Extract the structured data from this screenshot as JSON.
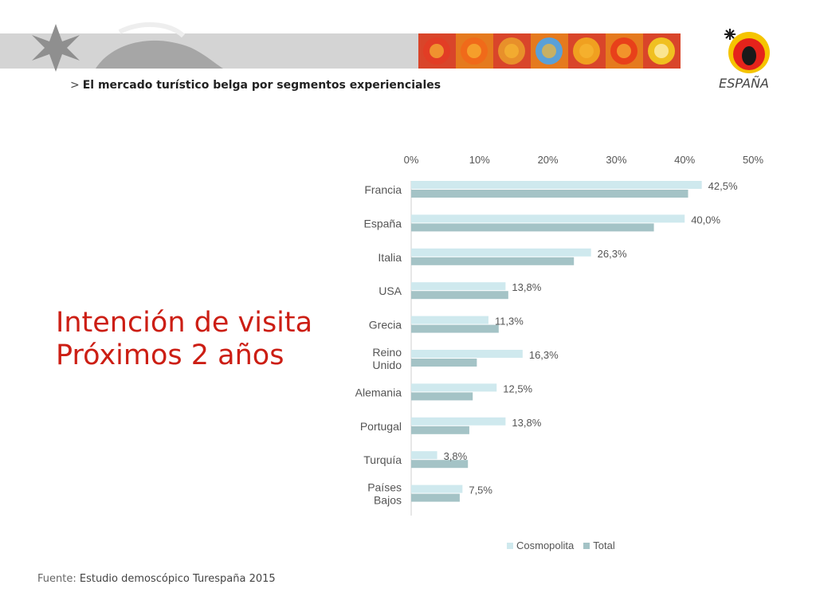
{
  "header": {
    "breadcrumb_arrow": ">",
    "breadcrumb_text": "El mercado turístico belga por segmentos experienciales",
    "logo_text": "ESPAÑA",
    "tile_colors": [
      "#e23d25",
      "#f06a1a",
      "#e8902a",
      "#5aa0d8",
      "#f0a020",
      "#e8401a",
      "#f0c020"
    ]
  },
  "slide": {
    "title_line1": "Intención de visita",
    "title_line2": "Próximos 2 años"
  },
  "footer": {
    "source_label": "Fuente:",
    "source_text": "Estudio demoscópico Turespaña 2015"
  },
  "colors": {
    "title_red": "#cc1e14",
    "cosmopolita": "#cfe9ee",
    "total": "#a4c3c6"
  },
  "chart_data": {
    "type": "bar",
    "orientation": "horizontal",
    "xlim": [
      0,
      50
    ],
    "x_ticks": [
      "0%",
      "10%",
      "20%",
      "30%",
      "40%",
      "50%"
    ],
    "x_axis_position": "top",
    "grid": false,
    "legend_position": "bottom",
    "categories": [
      [
        "Francia"
      ],
      [
        "España"
      ],
      [
        "Italia"
      ],
      [
        "USA"
      ],
      [
        "Grecia"
      ],
      [
        "Reino",
        "Unido"
      ],
      [
        "Alemania"
      ],
      [
        "Portugal"
      ],
      [
        "Turquía"
      ],
      [
        "Países",
        "Bajos"
      ]
    ],
    "series": [
      {
        "name": "Cosmopolita",
        "color": "#cfe9ee",
        "values": [
          42.5,
          40.0,
          26.3,
          13.8,
          11.3,
          16.3,
          12.5,
          13.8,
          3.8,
          7.5
        ],
        "labels": [
          "42,5%",
          "40,0%",
          "26,3%",
          "13,8%",
          "11,3%",
          "16,3%",
          "12,5%",
          "13,8%",
          "3,8%",
          "7,5%"
        ]
      },
      {
        "name": "Total",
        "color": "#a4c3c6",
        "values": [
          40.5,
          35.5,
          23.8,
          14.2,
          12.8,
          9.6,
          9.0,
          8.5,
          8.3,
          7.1
        ]
      }
    ]
  }
}
